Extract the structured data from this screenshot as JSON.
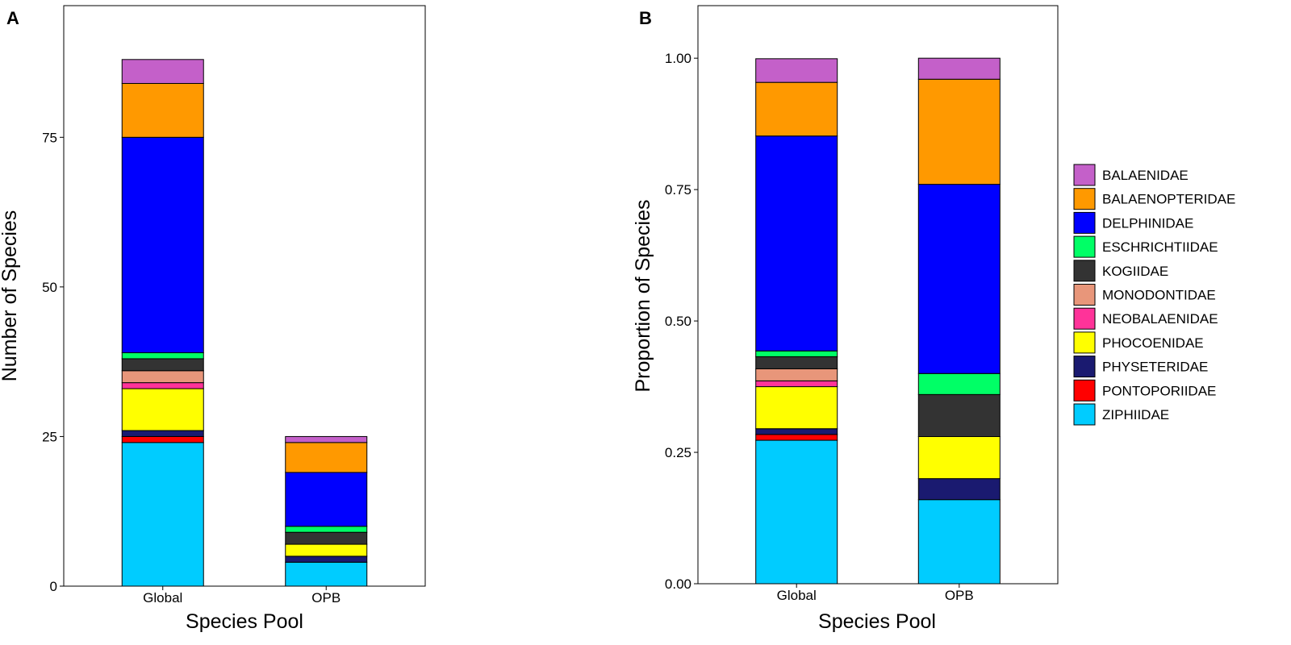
{
  "chart_data": [
    {
      "type": "bar",
      "stacked": true,
      "panel_label": "A",
      "title": "",
      "xlabel": "Species Pool",
      "ylabel": "Number of Species",
      "categories": [
        "Global",
        "OPB"
      ],
      "ylim": [
        0,
        97
      ],
      "yticks": [
        0,
        25,
        50,
        75
      ],
      "series": [
        {
          "name": "ZIPHIIDAE",
          "values": [
            24,
            4
          ]
        },
        {
          "name": "PONTOPORIIDAE",
          "values": [
            1,
            0
          ]
        },
        {
          "name": "PHYSETERIDAE",
          "values": [
            1,
            1
          ]
        },
        {
          "name": "PHOCOENIDAE",
          "values": [
            7,
            2
          ]
        },
        {
          "name": "NEOBALAENIDAE",
          "values": [
            1,
            0
          ]
        },
        {
          "name": "MONODONTIDAE",
          "values": [
            2,
            0
          ]
        },
        {
          "name": "KOGIIDAE",
          "values": [
            2,
            2
          ]
        },
        {
          "name": "ESCHRICHTIIDAE",
          "values": [
            1,
            1
          ]
        },
        {
          "name": "DELPHINIDAE",
          "values": [
            36,
            9
          ]
        },
        {
          "name": "BALAENOPTERIDAE",
          "values": [
            9,
            5
          ]
        },
        {
          "name": "BALAENIDAE",
          "values": [
            4,
            1
          ]
        }
      ],
      "grid": false,
      "legend": "none"
    },
    {
      "type": "bar",
      "stacked": true,
      "panel_label": "B",
      "title": "",
      "xlabel": "Species Pool",
      "ylabel": "Proportion of Species",
      "categories": [
        "Global",
        "OPB"
      ],
      "ylim": [
        0,
        1.1
      ],
      "yticks": [
        "0.00",
        "0.25",
        "0.50",
        "0.75",
        "1.00"
      ],
      "series": [
        {
          "name": "ZIPHIIDAE",
          "values": [
            0.273,
            0.16
          ]
        },
        {
          "name": "PONTOPORIIDAE",
          "values": [
            0.011,
            0
          ]
        },
        {
          "name": "PHYSETERIDAE",
          "values": [
            0.011,
            0.04
          ]
        },
        {
          "name": "PHOCOENIDAE",
          "values": [
            0.08,
            0.08
          ]
        },
        {
          "name": "NEOBALAENIDAE",
          "values": [
            0.011,
            0
          ]
        },
        {
          "name": "MONODONTIDAE",
          "values": [
            0.023,
            0
          ]
        },
        {
          "name": "KOGIIDAE",
          "values": [
            0.023,
            0.08
          ]
        },
        {
          "name": "ESCHRICHTIIDAE",
          "values": [
            0.011,
            0.04
          ]
        },
        {
          "name": "DELPHINIDAE",
          "values": [
            0.409,
            0.36
          ]
        },
        {
          "name": "BALAENOPTERIDAE",
          "values": [
            0.102,
            0.2
          ]
        },
        {
          "name": "BALAENIDAE",
          "values": [
            0.045,
            0.04
          ]
        }
      ],
      "grid": false,
      "legend": "right"
    }
  ],
  "legend": {
    "items": [
      {
        "label": "BALAENIDAE",
        "color": "#c460c9"
      },
      {
        "label": "BALAENOPTERIDAE",
        "color": "#ff9900"
      },
      {
        "label": "DELPHINIDAE",
        "color": "#0000ff"
      },
      {
        "label": "ESCHRICHTIIDAE",
        "color": "#00ff66"
      },
      {
        "label": "KOGIIDAE",
        "color": "#333333"
      },
      {
        "label": "MONODONTIDAE",
        "color": "#e8967a"
      },
      {
        "label": "NEOBALAENIDAE",
        "color": "#ff3399"
      },
      {
        "label": "PHOCOENIDAE",
        "color": "#ffff00"
      },
      {
        "label": "PHYSETERIDAE",
        "color": "#1a1a70"
      },
      {
        "label": "PONTOPORIIDAE",
        "color": "#ff0000"
      },
      {
        "label": "ZIPHIIDAE",
        "color": "#00ccff"
      }
    ]
  }
}
